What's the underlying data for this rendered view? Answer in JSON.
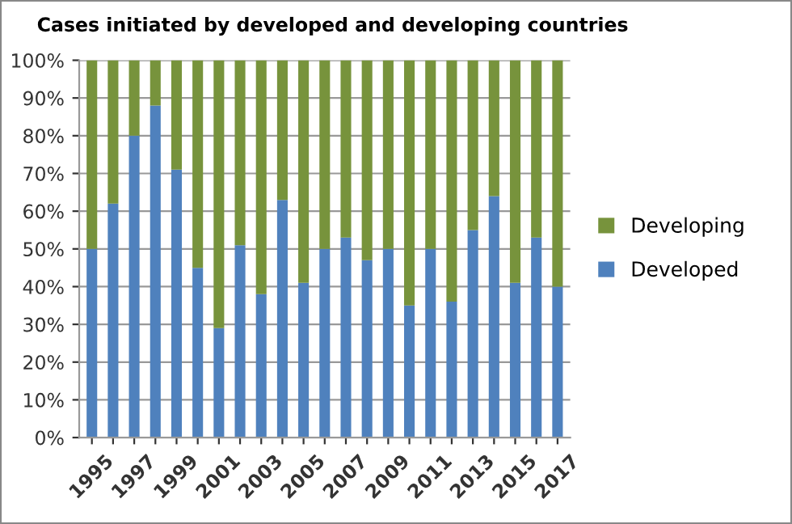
{
  "chart_data": {
    "type": "bar",
    "title": "Cases initiated by developed and developing countries",
    "stacked": true,
    "categories": [
      "1995",
      null,
      "1997",
      null,
      "1999",
      null,
      "2001",
      null,
      "2003",
      null,
      "2005",
      null,
      "2007",
      null,
      "2009",
      null,
      "2011",
      null,
      "2013",
      null,
      "2015",
      null,
      "2017"
    ],
    "series": [
      {
        "name": "Developed",
        "color": "#4f81bd",
        "values": [
          50,
          62,
          80,
          88,
          71,
          45,
          29,
          51,
          38,
          63,
          41,
          50,
          53,
          47,
          50,
          35,
          50,
          36,
          55,
          64,
          41,
          53,
          40
        ]
      },
      {
        "name": "Developing",
        "color": "#77933c",
        "values": [
          50,
          38,
          20,
          12,
          29,
          55,
          71,
          49,
          62,
          37,
          59,
          50,
          47,
          53,
          50,
          65,
          50,
          64,
          45,
          36,
          59,
          47,
          60
        ]
      }
    ],
    "ylim": [
      0,
      100
    ],
    "yticks": [
      {
        "value": 0,
        "label": "0%"
      },
      {
        "value": 10,
        "label": "10%"
      },
      {
        "value": 20,
        "label": "20%"
      },
      {
        "value": 30,
        "label": "30%"
      },
      {
        "value": 40,
        "label": "40%"
      },
      {
        "value": 50,
        "label": "50%"
      },
      {
        "value": 60,
        "label": "60%"
      },
      {
        "value": 70,
        "label": "70%"
      },
      {
        "value": 80,
        "label": "80%"
      },
      {
        "value": 90,
        "label": "90%"
      },
      {
        "value": 100,
        "label": "100%"
      }
    ],
    "grid": "y",
    "legend": "right"
  }
}
